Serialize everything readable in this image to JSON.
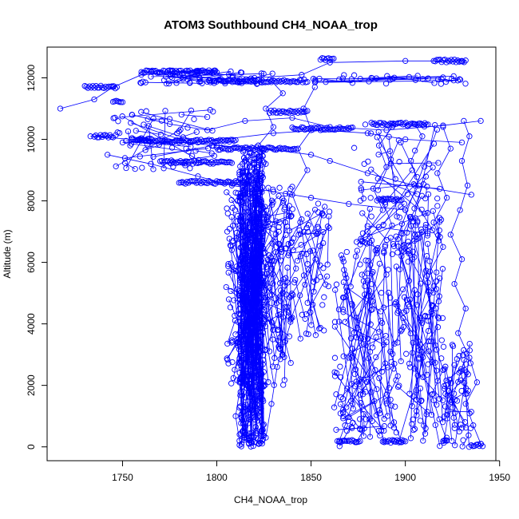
{
  "chart_data": {
    "type": "scatter",
    "title": "ATOM3 Southbound CH4_NOAA_trop",
    "xlabel": "CH4_NOAA_trop",
    "ylabel": "Altitude (m)",
    "xlim": [
      1710,
      1948
    ],
    "ylim": [
      -450,
      13000
    ],
    "x_ticks": [
      1750,
      1800,
      1850,
      1900,
      1950
    ],
    "y_ticks": [
      0,
      2000,
      4000,
      6000,
      8000,
      10000,
      12000
    ],
    "grid": false,
    "legend": "none",
    "marker": "open-circle",
    "connected": true,
    "color": "#0000ff",
    "series": [
      {
        "points": [
          [
            1817,
            100
          ],
          [
            1815,
            600
          ],
          [
            1819,
            1200
          ],
          [
            1816,
            2000
          ],
          [
            1821,
            2800
          ],
          [
            1818,
            3600
          ],
          [
            1822,
            4400
          ],
          [
            1819,
            5200
          ],
          [
            1823,
            6000
          ],
          [
            1820,
            6800
          ],
          [
            1824,
            7600
          ],
          [
            1821,
            8400
          ],
          [
            1826,
            9200
          ],
          [
            1822,
            9800
          ],
          [
            1830,
            10400
          ],
          [
            1826,
            11000
          ],
          [
            1835,
            11500
          ],
          [
            1829,
            11900
          ]
        ]
      },
      {
        "points": [
          [
            1812,
            200
          ],
          [
            1810,
            1000
          ],
          [
            1813,
            2200
          ],
          [
            1811,
            3400
          ],
          [
            1814,
            4600
          ],
          [
            1812,
            5800
          ],
          [
            1808,
            6400
          ],
          [
            1815,
            7200
          ],
          [
            1811,
            8000
          ],
          [
            1818,
            8800
          ],
          [
            1814,
            9600
          ]
        ]
      },
      {
        "points": [
          [
            1826,
            300
          ],
          [
            1829,
            1400
          ],
          [
            1832,
            2600
          ],
          [
            1836,
            3400
          ],
          [
            1840,
            4200
          ],
          [
            1835,
            5000
          ],
          [
            1842,
            5800
          ],
          [
            1838,
            6600
          ],
          [
            1845,
            7400
          ],
          [
            1840,
            8200
          ],
          [
            1848,
            9000
          ],
          [
            1843,
            9700
          ],
          [
            1850,
            10300
          ],
          [
            1846,
            11000
          ],
          [
            1852,
            11700
          ]
        ]
      },
      {
        "points": [
          [
            1865,
            200
          ],
          [
            1868,
            700
          ],
          [
            1872,
            1400
          ],
          [
            1876,
            2200
          ],
          [
            1870,
            2900
          ],
          [
            1878,
            3500
          ],
          [
            1874,
            4200
          ],
          [
            1882,
            4900
          ],
          [
            1877,
            5600
          ],
          [
            1885,
            6300
          ],
          [
            1880,
            7000
          ],
          [
            1888,
            7700
          ],
          [
            1883,
            8400
          ],
          [
            1890,
            9100
          ],
          [
            1886,
            9800
          ],
          [
            1893,
            10400
          ]
        ]
      },
      {
        "points": [
          [
            1898,
            150
          ],
          [
            1894,
            800
          ],
          [
            1890,
            1500
          ],
          [
            1896,
            2300
          ],
          [
            1892,
            3100
          ],
          [
            1899,
            3900
          ],
          [
            1895,
            4700
          ],
          [
            1902,
            5400
          ],
          [
            1898,
            6200
          ],
          [
            1905,
            6900
          ],
          [
            1900,
            7700
          ],
          [
            1907,
            8500
          ],
          [
            1903,
            9300
          ],
          [
            1909,
            10100
          ],
          [
            1905,
            10500
          ]
        ]
      },
      {
        "points": [
          [
            1922,
            200
          ],
          [
            1918,
            900
          ],
          [
            1914,
            1700
          ],
          [
            1920,
            2500
          ],
          [
            1916,
            3300
          ],
          [
            1912,
            4100
          ],
          [
            1918,
            4900
          ],
          [
            1913,
            5700
          ],
          [
            1920,
            6500
          ],
          [
            1915,
            7300
          ],
          [
            1922,
            8100
          ],
          [
            1917,
            8900
          ],
          [
            1924,
            9700
          ],
          [
            1920,
            10400
          ]
        ]
      },
      {
        "points": [
          [
            1940,
            100
          ],
          [
            1936,
            700
          ],
          [
            1932,
            1400
          ],
          [
            1938,
            2100
          ],
          [
            1934,
            2900
          ],
          [
            1928,
            3700
          ],
          [
            1932,
            4500
          ],
          [
            1926,
            5300
          ],
          [
            1930,
            6100
          ],
          [
            1924,
            6900
          ],
          [
            1929,
            7700
          ],
          [
            1933,
            8500
          ],
          [
            1930,
            9300
          ],
          [
            1934,
            10100
          ],
          [
            1931,
            10600
          ]
        ]
      },
      {
        "points": [
          [
            1874,
            150
          ],
          [
            1881,
            900
          ],
          [
            1876,
            1700
          ],
          [
            1884,
            2500
          ],
          [
            1879,
            3300
          ],
          [
            1887,
            4100
          ],
          [
            1882,
            4900
          ],
          [
            1890,
            5600
          ],
          [
            1885,
            6400
          ],
          [
            1893,
            7200
          ],
          [
            1888,
            8000
          ]
        ]
      },
      {
        "points": [
          [
            1717,
            11000
          ],
          [
            1735,
            11300
          ],
          [
            1745,
            11700
          ],
          [
            1760,
            12100
          ],
          [
            1790,
            12200
          ],
          [
            1820,
            12000
          ],
          [
            1845,
            12100
          ],
          [
            1860,
            12500
          ],
          [
            1900,
            12550
          ],
          [
            1930,
            12550
          ]
        ]
      },
      {
        "points": [
          [
            1733,
            10100
          ],
          [
            1755,
            10000
          ],
          [
            1780,
            9900
          ],
          [
            1800,
            9800
          ],
          [
            1825,
            9700
          ],
          [
            1850,
            9500
          ],
          [
            1860,
            9300
          ],
          [
            1880,
            8900
          ],
          [
            1905,
            8500
          ],
          [
            1935,
            8200
          ]
        ]
      },
      {
        "points": [
          [
            1742,
            9500
          ],
          [
            1765,
            9200
          ],
          [
            1790,
            8800
          ],
          [
            1808,
            8500
          ],
          [
            1830,
            8300
          ],
          [
            1850,
            8100
          ],
          [
            1870,
            7900
          ],
          [
            1900,
            7700
          ]
        ]
      },
      {
        "points": [
          [
            1755,
            10800
          ],
          [
            1775,
            10500
          ],
          [
            1795,
            10300
          ],
          [
            1815,
            10600
          ],
          [
            1840,
            10700
          ],
          [
            1860,
            10400
          ],
          [
            1890,
            10300
          ],
          [
            1920,
            10450
          ],
          [
            1940,
            10600
          ]
        ]
      },
      {
        "points": [
          [
            1750,
            9900
          ],
          [
            1790,
            9900
          ],
          [
            1830,
            10200
          ],
          [
            1855,
            10300
          ],
          [
            1880,
            10200
          ],
          [
            1900,
            10000
          ],
          [
            1930,
            9900
          ]
        ]
      }
    ],
    "clusters": [
      [
        1812,
        1825,
        0,
        9700,
        600
      ],
      [
        1805,
        1840,
        2000,
        8500,
        260
      ],
      [
        1838,
        1860,
        3500,
        8000,
        80
      ],
      [
        1862,
        1895,
        0,
        7000,
        170
      ],
      [
        1895,
        1920,
        0,
        7500,
        150
      ],
      [
        1920,
        1935,
        0,
        3500,
        70
      ],
      [
        1872,
        1920,
        6500,
        10500,
        90
      ],
      [
        1745,
        1800,
        9000,
        11000,
        70
      ],
      [
        1755,
        1830,
        11800,
        12250,
        60
      ],
      [
        1850,
        1935,
        11800,
        12100,
        40
      ]
    ],
    "runs": [
      [
        1795,
        1848,
        11900
      ],
      [
        1760,
        1800,
        12200
      ],
      [
        1758,
        1810,
        9950
      ],
      [
        1800,
        1842,
        9700
      ],
      [
        1770,
        1808,
        9250
      ],
      [
        1780,
        1820,
        8600
      ],
      [
        1730,
        1747,
        11700
      ],
      [
        1745,
        1750,
        11250
      ],
      [
        1735,
        1745,
        10100
      ],
      [
        1755,
        1765,
        10000
      ],
      [
        1882,
        1912,
        10500
      ],
      [
        1840,
        1872,
        10350
      ],
      [
        1855,
        1862,
        12600
      ],
      [
        1915,
        1932,
        12550
      ],
      [
        1828,
        1848,
        10900
      ],
      [
        1885,
        1898,
        8050
      ],
      [
        1864,
        1876,
        180
      ],
      [
        1888,
        1900,
        180
      ],
      [
        1920,
        1922,
        200
      ],
      [
        1935,
        1941,
        60
      ]
    ]
  }
}
